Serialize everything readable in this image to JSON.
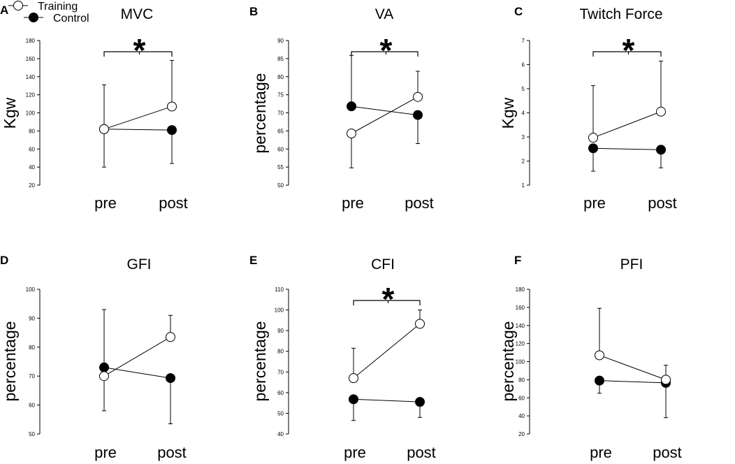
{
  "legend": {
    "items": [
      {
        "name": "Training",
        "marker": "open-circle"
      },
      {
        "name": "Control",
        "marker": "filled-circle"
      }
    ]
  },
  "chart_data": [
    {
      "panel": "A",
      "type": "line",
      "title": "MVC",
      "ylabel": "Kgw",
      "categories": [
        "pre",
        "post"
      ],
      "ylim": [
        20,
        180
      ],
      "yticks": [
        20,
        40,
        60,
        80,
        100,
        120,
        140,
        160,
        180
      ],
      "series": [
        {
          "name": "Training",
          "values": [
            82,
            107
          ],
          "error": [
            {
              "dir": "down",
              "to": 40
            },
            {
              "dir": "up",
              "to": 158
            }
          ]
        },
        {
          "name": "Control",
          "values": [
            82,
            81
          ],
          "error": [
            {
              "dir": "up",
              "to": 131
            },
            {
              "dir": "down",
              "to": 44
            }
          ]
        }
      ],
      "significance": {
        "label": "*",
        "from": "pre",
        "to": "post"
      }
    },
    {
      "panel": "B",
      "type": "line",
      "title": "VA",
      "ylabel": "percentage",
      "categories": [
        "pre",
        "post"
      ],
      "ylim": [
        50,
        90
      ],
      "yticks": [
        50,
        55,
        60,
        65,
        70,
        75,
        80,
        85,
        90
      ],
      "series": [
        {
          "name": "Training",
          "values": [
            64.3,
            74.4
          ],
          "error": [
            {
              "dir": "down",
              "to": 54.8
            },
            {
              "dir": "up",
              "to": 81.5
            }
          ]
        },
        {
          "name": "Control",
          "values": [
            71.8,
            69.4
          ],
          "error": [
            {
              "dir": "up",
              "to": 85.9
            },
            {
              "dir": "down",
              "to": 61.5
            }
          ]
        }
      ],
      "significance": {
        "label": "*",
        "from": "pre",
        "to": "post"
      }
    },
    {
      "panel": "C",
      "type": "line",
      "title": "Twitch Force",
      "ylabel": "Kgw",
      "categories": [
        "pre",
        "post"
      ],
      "ylim": [
        1,
        7
      ],
      "yticks": [
        1,
        2,
        3,
        4,
        5,
        6,
        7
      ],
      "series": [
        {
          "name": "Training",
          "values": [
            2.97,
            4.05
          ],
          "error": [
            {
              "dir": "up",
              "to": 5.13
            },
            {
              "dir": "up",
              "to": 6.15
            }
          ]
        },
        {
          "name": "Control",
          "values": [
            2.53,
            2.47
          ],
          "error": [
            {
              "dir": "down",
              "to": 1.58
            },
            {
              "dir": "down",
              "to": 1.72
            }
          ]
        }
      ],
      "significance": {
        "label": "*",
        "from": "pre",
        "to": "post"
      }
    },
    {
      "panel": "D",
      "type": "line",
      "title": "GFI",
      "ylabel": "percentage",
      "categories": [
        "pre",
        "post"
      ],
      "ylim": [
        50,
        100
      ],
      "yticks": [
        50,
        60,
        70,
        80,
        90,
        100
      ],
      "series": [
        {
          "name": "Training",
          "values": [
            70,
            83.5
          ],
          "error": [
            {
              "dir": "down",
              "to": 58
            },
            {
              "dir": "up",
              "to": 91
            }
          ]
        },
        {
          "name": "Control",
          "values": [
            73,
            69.3
          ],
          "error": [
            {
              "dir": "up",
              "to": 93
            },
            {
              "dir": "down",
              "to": 53.5
            }
          ]
        }
      ]
    },
    {
      "panel": "E",
      "type": "line",
      "title": "CFI",
      "ylabel": "percentage",
      "categories": [
        "pre",
        "post"
      ],
      "ylim": [
        40,
        110
      ],
      "yticks": [
        40,
        50,
        60,
        70,
        80,
        90,
        100,
        110
      ],
      "series": [
        {
          "name": "Training",
          "values": [
            67,
            93.3
          ],
          "error": [
            {
              "dir": "up",
              "to": 81.5
            },
            {
              "dir": "up",
              "to": 100
            }
          ]
        },
        {
          "name": "Control",
          "values": [
            56.8,
            55.5
          ],
          "error": [
            {
              "dir": "down",
              "to": 46.5
            },
            {
              "dir": "down",
              "to": 48
            }
          ]
        }
      ],
      "significance": {
        "label": "*",
        "from": "pre",
        "to": "post"
      }
    },
    {
      "panel": "F",
      "type": "line",
      "title": "PFI",
      "ylabel": "percentage",
      "categories": [
        "pre",
        "post"
      ],
      "ylim": [
        20,
        180
      ],
      "yticks": [
        20,
        40,
        60,
        80,
        100,
        120,
        140,
        160,
        180
      ],
      "series": [
        {
          "name": "Training",
          "values": [
            107,
            80
          ],
          "error": [
            {
              "dir": "up",
              "to": 159
            },
            {
              "dir": "up",
              "to": 96
            }
          ]
        },
        {
          "name": "Control",
          "values": [
            79,
            76.5
          ],
          "error": [
            {
              "dir": "down",
              "to": 65
            },
            {
              "dir": "down",
              "to": 38
            }
          ]
        }
      ]
    }
  ]
}
